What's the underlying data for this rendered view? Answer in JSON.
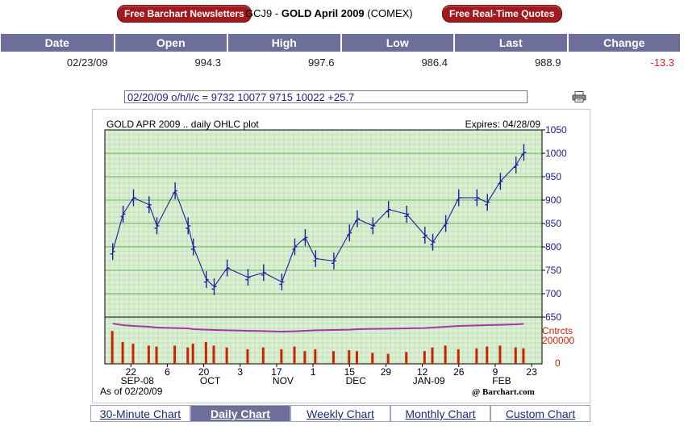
{
  "header": {
    "newsletters_button": "Free Barchart Newsletters",
    "realtime_button": "Free Real-Time Quotes",
    "symbol": "GCJ9",
    "separator": "-",
    "contract": "GOLD April 2009",
    "exchange": "(COMEX)"
  },
  "quote_table": {
    "columns": [
      "Date",
      "Open",
      "High",
      "Low",
      "Last",
      "Change"
    ],
    "row": [
      "02/23/09",
      "994.3",
      "997.6",
      "986.4",
      "988.9",
      "-13.3"
    ]
  },
  "ohlc_summary": "02/20/09 o/h/l/c = 9732 10077 9715 10022 +25.7",
  "icons": {
    "print": "printer-icon"
  },
  "chart_labels": {
    "title": "GOLD APR 2009 .. daily OHLC plot",
    "expires": "Expires: 04/28/09",
    "volume_axis_label": "Cntrcts",
    "volume_tick_hi": "200000",
    "volume_tick_lo": "0",
    "as_of": "As of 02/20/09",
    "copyright": "@ Barchart.com"
  },
  "chart_data": {
    "type": "ohlc",
    "title": "GOLD APR 2009 .. daily OHLC plot",
    "y_ticks": [
      650,
      700,
      750,
      800,
      850,
      900,
      950,
      1000,
      1050
    ],
    "ylim": [
      650,
      1050
    ],
    "x_tick_labels": [
      "22",
      "6",
      "20",
      "3",
      "17",
      "1",
      "15",
      "29",
      "12",
      "26",
      "9",
      "23"
    ],
    "x_month_labels": [
      "SEP-08",
      "OCT",
      "NOV",
      "DEC",
      "JAN-09",
      "FEB"
    ],
    "grid": true,
    "price_series": [
      {
        "date": "2008-09-15",
        "close": 790
      },
      {
        "date": "2008-09-19",
        "close": 870
      },
      {
        "date": "2008-09-23",
        "close": 905
      },
      {
        "date": "2008-09-29",
        "close": 890
      },
      {
        "date": "2008-10-02",
        "close": 845
      },
      {
        "date": "2008-10-09",
        "close": 920
      },
      {
        "date": "2008-10-14",
        "close": 845
      },
      {
        "date": "2008-10-16",
        "close": 800
      },
      {
        "date": "2008-10-21",
        "close": 730
      },
      {
        "date": "2008-10-24",
        "close": 715
      },
      {
        "date": "2008-10-29",
        "close": 755
      },
      {
        "date": "2008-11-06",
        "close": 735
      },
      {
        "date": "2008-11-12",
        "close": 745
      },
      {
        "date": "2008-11-19",
        "close": 725
      },
      {
        "date": "2008-11-24",
        "close": 800
      },
      {
        "date": "2008-11-28",
        "close": 820
      },
      {
        "date": "2008-12-02",
        "close": 775
      },
      {
        "date": "2008-12-09",
        "close": 770
      },
      {
        "date": "2008-12-15",
        "close": 830
      },
      {
        "date": "2008-12-18",
        "close": 860
      },
      {
        "date": "2008-12-24",
        "close": 845
      },
      {
        "date": "2008-12-30",
        "close": 880
      },
      {
        "date": "2009-01-06",
        "close": 870
      },
      {
        "date": "2009-01-13",
        "close": 825
      },
      {
        "date": "2009-01-16",
        "close": 810
      },
      {
        "date": "2009-01-21",
        "close": 850
      },
      {
        "date": "2009-01-26",
        "close": 905
      },
      {
        "date": "2009-02-02",
        "close": 905
      },
      {
        "date": "2009-02-06",
        "close": 895
      },
      {
        "date": "2009-02-11",
        "close": 940
      },
      {
        "date": "2009-02-17",
        "close": 975
      },
      {
        "date": "2009-02-20",
        "close": 1002
      }
    ],
    "volume_series": [
      180000,
      120000,
      110000,
      100000,
      95000,
      100000,
      90000,
      110000,
      120000,
      100000,
      90000,
      80000,
      90000,
      80000,
      95000,
      70000,
      80000,
      70000,
      75000,
      70000,
      60000,
      55000,
      65000,
      70000,
      90000,
      100000,
      80000,
      85000,
      95000,
      100000,
      90000,
      85000
    ],
    "open_interest_series": [
      240000,
      230000,
      225000,
      220000,
      215000,
      212000,
      210000,
      205000,
      202000,
      200000,
      198000,
      195000,
      193000,
      190000,
      192000,
      195000,
      198000,
      200000,
      202000,
      205000,
      207000,
      208000,
      210000,
      212000,
      215000,
      220000,
      225000,
      228000,
      230000,
      232000,
      235000,
      238000
    ]
  },
  "tabs": [
    {
      "label": "30-Minute Chart",
      "active": false
    },
    {
      "label": "Daily Chart",
      "active": true
    },
    {
      "label": "Weekly Chart",
      "active": false
    },
    {
      "label": "Monthly Chart",
      "active": false
    },
    {
      "label": "Custom Chart",
      "active": false
    }
  ],
  "colors": {
    "brand_red": "#a2191e",
    "header_bar": "#6e6e9a",
    "price_line": "#1f1f9e",
    "volume_bar": "#cc2200",
    "open_interest_line": "#aa33aa",
    "plot_bg": "#dcefd4",
    "grid": "#9bcf8f",
    "change_negative": "#e0202a"
  }
}
